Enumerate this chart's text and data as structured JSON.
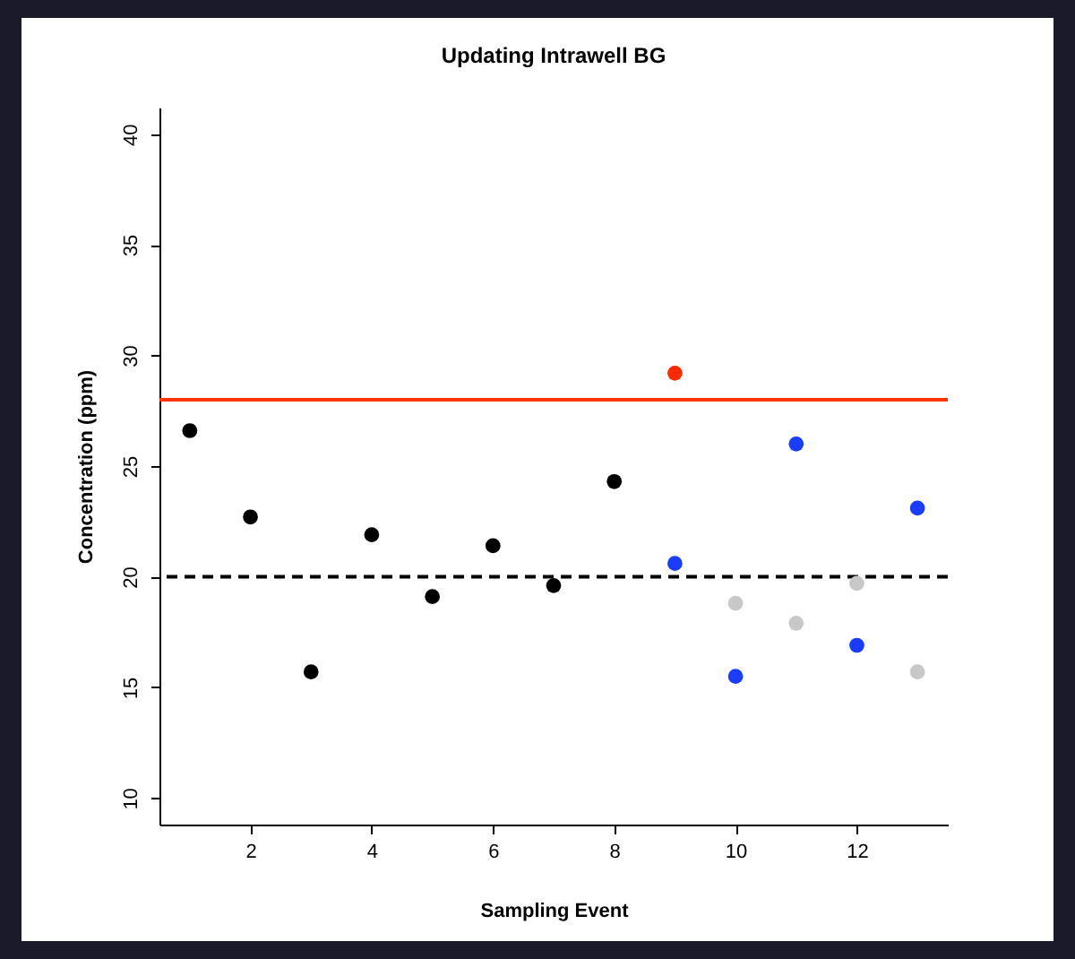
{
  "chart_data": {
    "type": "scatter",
    "title": "Updating Intrawell BG",
    "xlabel": "Sampling Event",
    "ylabel": "Concentration (ppm)",
    "xlim": [
      0.5,
      13.5
    ],
    "xticks": [
      2,
      4,
      6,
      8,
      10,
      12
    ],
    "ylim": [
      8.8,
      41.2
    ],
    "yticks": [
      10,
      15,
      20,
      25,
      30,
      35,
      40
    ],
    "grid": false,
    "marker": "circle",
    "series": [
      {
        "color": "#000000",
        "x": [
          1,
          2,
          3,
          4,
          5,
          6,
          7,
          8
        ],
        "values": [
          26.6,
          22.7,
          15.7,
          21.9,
          19.1,
          21.4,
          19.6,
          24.3
        ]
      },
      {
        "color": "#ff2a00",
        "x": [
          9
        ],
        "values": [
          29.2
        ]
      },
      {
        "color": "#1a3cff",
        "x": [
          9,
          10,
          11,
          12,
          13
        ],
        "values": [
          20.6,
          15.5,
          26.0,
          16.9,
          23.1
        ]
      },
      {
        "color": "#c8c8c8",
        "x": [
          10,
          11,
          12,
          13
        ],
        "values": [
          18.8,
          17.9,
          19.7,
          15.7
        ]
      }
    ],
    "ref_lines": [
      {
        "axis": "y",
        "value": 28,
        "color": "#ff3300",
        "line_style": "solid"
      },
      {
        "axis": "y",
        "value": 20,
        "color": "#000000",
        "line_style": "dashed"
      }
    ]
  }
}
